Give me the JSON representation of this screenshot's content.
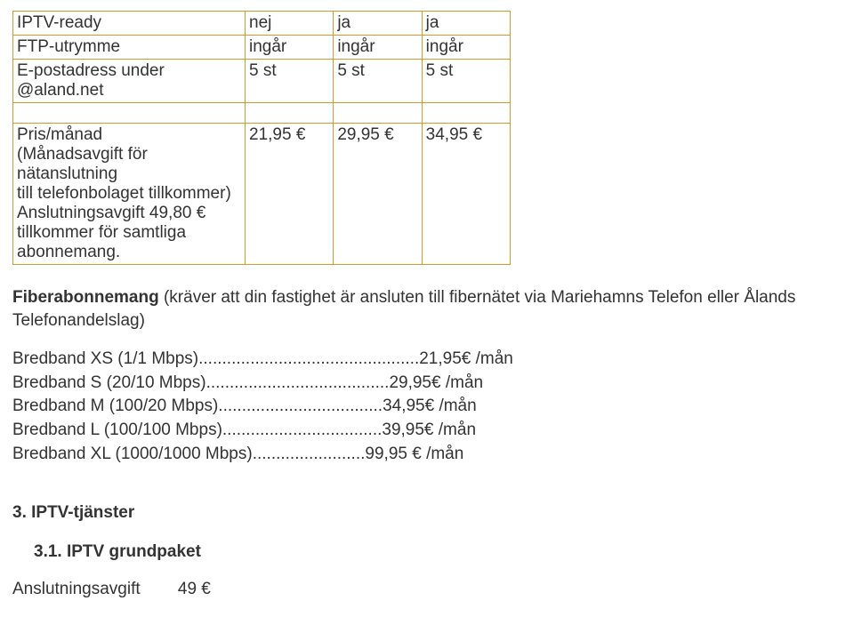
{
  "table": {
    "rows": [
      {
        "label": "IPTV-ready",
        "c1": "nej",
        "c2": "ja",
        "c3": "ja"
      },
      {
        "label": "FTP-utrymme",
        "c1": "ingår",
        "c2": "ingår",
        "c3": "ingår"
      },
      {
        "label": "E-postadress under @aland.net",
        "c1": "5 st",
        "c2": "5 st",
        "c3": "5 st"
      }
    ],
    "price": {
      "label": "Pris/månad\n(Månadsavgift för nätanslutning\ntill telefonbolaget tillkommer)\nAnslutningsavgift 49,80 €\ntillkommer för samtliga\nabonnemang.",
      "c1": "21,95 €",
      "c2": "29,95 €",
      "c3": "34,95 €"
    }
  },
  "fiber": {
    "intro_bold": "Fiberabonnemang",
    "intro_rest": " (kräver att din fastighet är ansluten till fibernätet via Mariehamns Telefon eller Ålands Telefonandelslag)"
  },
  "plans": [
    {
      "name": "Bredband XS (1/1 Mbps)",
      "dots": "...............................................",
      "price": " 21,95€ /mån"
    },
    {
      "name": "Bredband S (20/10 Mbps)",
      "dots": " .......................................",
      "price": " 29,95€ /mån"
    },
    {
      "name": "Bredband M (100/20 Mbps)",
      "dots": " ...................................",
      "price": " 34,95€ /mån"
    },
    {
      "name": "Bredband L (100/100 Mbps)",
      "dots": "..................................",
      "price": " 39,95€ /mån"
    },
    {
      "name": "Bredband XL (1000/1000 Mbps)",
      "dots": "........................",
      "price": "99,95 € /mån"
    }
  ],
  "section3": "3.  IPTV-tjänster",
  "section31": "3.1.  IPTV grundpaket",
  "fee": {
    "label": "Anslutningsavgift",
    "value": "49 €"
  }
}
